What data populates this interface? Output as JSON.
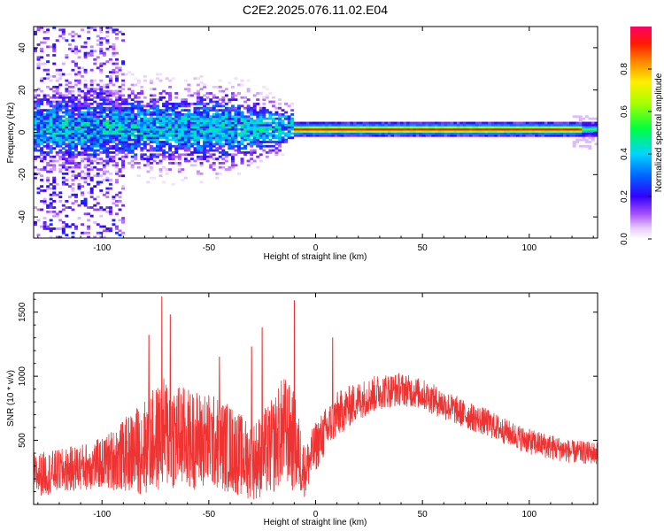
{
  "chart_data": [
    {
      "type": "heatmap",
      "title": "C2E2.2025.076.11.02.E04",
      "xlabel": "Height of straight line (km)",
      "ylabel": "Frequency (Hz)",
      "xlim": [
        -132,
        132
      ],
      "ylim": [
        -50,
        50
      ],
      "xticks": [
        -100,
        -50,
        0,
        50,
        100
      ],
      "yticks": [
        -40,
        -20,
        0,
        20,
        40
      ],
      "colorbar": {
        "label": "Normalized spectral amplitude",
        "range": [
          0.0,
          1.0
        ],
        "ticks": [
          0.0,
          0.2,
          0.4,
          0.6,
          0.8
        ],
        "colormap": [
          "#ffffff",
          "#d9b3ff",
          "#7a00ff",
          "#0000ff",
          "#00c8ff",
          "#00ff00",
          "#ffff00",
          "#ff8000",
          "#ff0000",
          "#ff0066"
        ]
      },
      "features": {
        "signal_band_frequency_hz": 1.5,
        "signal_band_halfwidth_hz": 1.5,
        "coherent_band_start_km": -10,
        "coherent_band_amplitude": 0.9,
        "noise_cloud_x_range_km": [
          -132,
          -10
        ],
        "noise_cloud_amplitude": 0.35
      }
    },
    {
      "type": "line",
      "xlabel": "Height of straight line (km)",
      "ylabel": "SNR (10 * v/v)",
      "xlim": [
        -132,
        132
      ],
      "ylim": [
        0,
        1650
      ],
      "xticks": [
        -100,
        -50,
        0,
        50,
        100
      ],
      "yticks": [
        500,
        1000,
        1500
      ],
      "series": [
        {
          "color": "#ee3333",
          "envelope_x": [
            -132,
            -120,
            -100,
            -90,
            -80,
            -70,
            -60,
            -50,
            -40,
            -30,
            -20,
            -15,
            -10,
            -5,
            0,
            10,
            20,
            30,
            40,
            50,
            60,
            70,
            80,
            90,
            100,
            110,
            120,
            132
          ],
          "envelope_mean": [
            230,
            260,
            320,
            380,
            450,
            560,
            510,
            500,
            440,
            330,
            450,
            600,
            480,
            260,
            450,
            700,
            810,
            880,
            900,
            860,
            780,
            700,
            640,
            560,
            490,
            450,
            410,
            400
          ],
          "envelope_spread": [
            170,
            170,
            200,
            280,
            380,
            450,
            400,
            380,
            350,
            300,
            380,
            420,
            400,
            200,
            200,
            180,
            150,
            140,
            130,
            120,
            120,
            110,
            110,
            100,
            100,
            100,
            90,
            90
          ],
          "peaks": [
            {
              "x": -72,
              "y": 1620
            },
            {
              "x": -68,
              "y": 1480
            },
            {
              "x": -10,
              "y": 1590
            },
            {
              "x": -25,
              "y": 1380
            },
            {
              "x": -78,
              "y": 1320
            },
            {
              "x": 8,
              "y": 1300
            },
            {
              "x": -45,
              "y": 1150
            },
            {
              "x": -30,
              "y": 1230
            }
          ]
        }
      ]
    }
  ]
}
